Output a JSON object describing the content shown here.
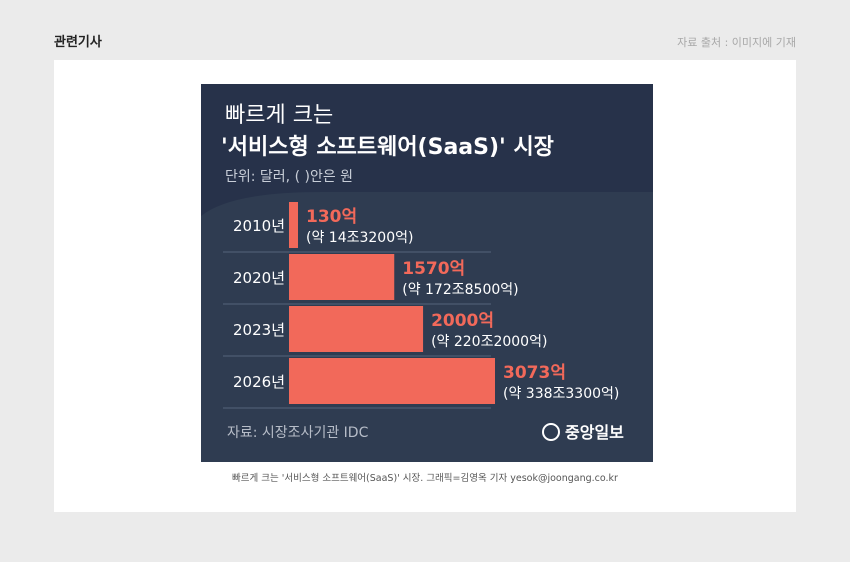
{
  "page": {
    "section_title": "관련기사",
    "source_note": "자료 출처 : 이미지에 기재",
    "caption": "빠르게 크는 '서비스형 소프트웨어(SaaS)' 시장. 그래픽=김영옥 기자 yesok@joongang.co.kr"
  },
  "colors": {
    "background": "#2f3c51",
    "header_band": "#27324a",
    "bar": "#f2695a",
    "value_label": "#f2695a",
    "text": "#ffffff"
  },
  "chart_data": {
    "type": "bar",
    "orientation": "horizontal",
    "title_line1": "빠르게 크는",
    "title_line2": "'서비스형 소프트웨어(SaaS)' 시장",
    "unit_note": "단위: 달러, ( )안은 원",
    "categories": [
      "2010년",
      "2020년",
      "2023년",
      "2026년"
    ],
    "values": [
      130,
      1570,
      2000,
      3073
    ],
    "value_labels": [
      "130억",
      "1570억",
      "2000억",
      "3073억"
    ],
    "krw_labels": [
      "(약 14조3200억)",
      "(약 172조8500억)",
      "(약 220조2000억)",
      "(약 338조3300억)"
    ],
    "xlim": [
      0,
      3073
    ],
    "source": "자료: 시장조사기관 IDC",
    "logo": "중앙일보"
  }
}
